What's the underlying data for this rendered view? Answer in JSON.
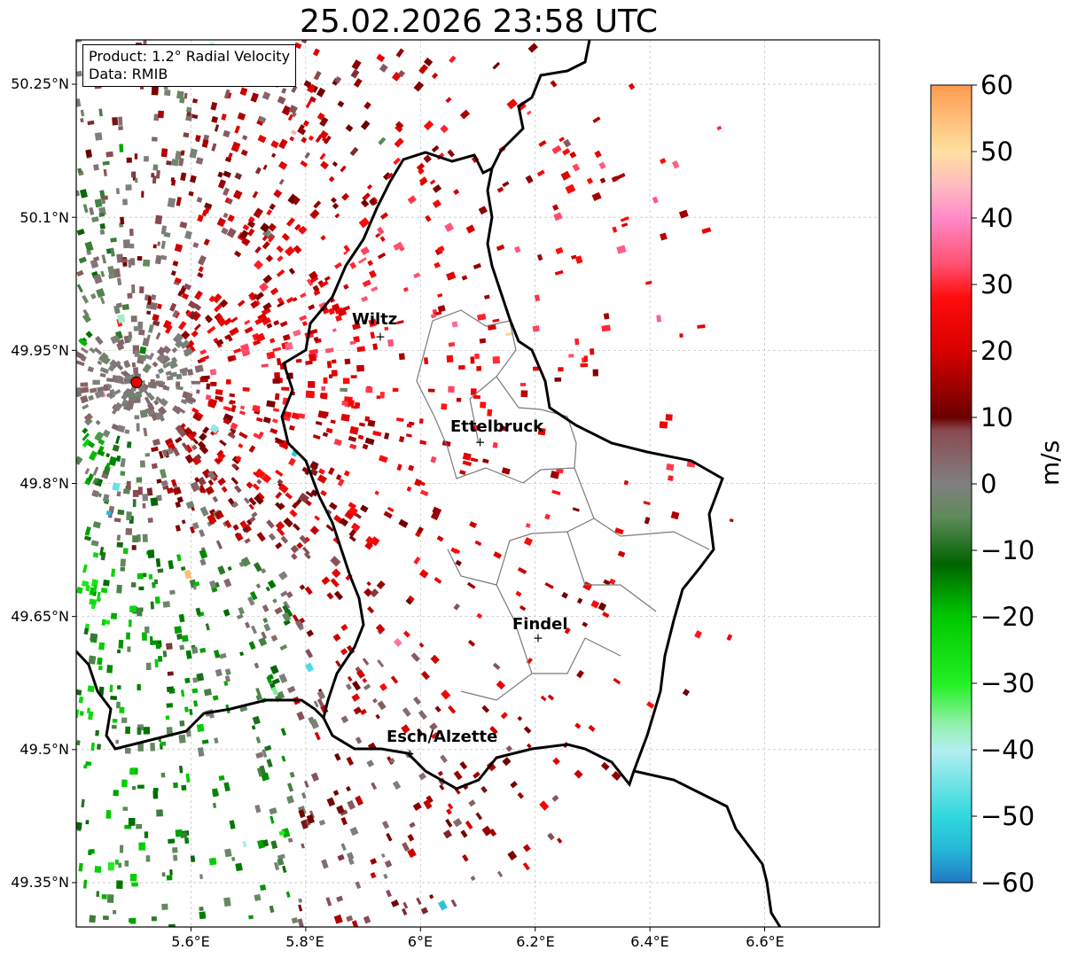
{
  "title": "25.02.2026 23:58 UTC",
  "info": {
    "product": "Product: 1.2° Radial Velocity",
    "source": "Data: RMIB"
  },
  "map": {
    "lon_range": [
      5.4,
      6.8
    ],
    "lat_range": [
      49.3,
      50.3
    ],
    "lat_ticks": [
      "50.25°N",
      "50.1°N",
      "49.95°N",
      "49.8°N",
      "49.65°N",
      "49.5°N",
      "49.35°N"
    ],
    "lon_ticks": [
      "5.6°E",
      "5.8°E",
      "6°E",
      "6.2°E",
      "6.4°E",
      "6.6°E"
    ],
    "radar_site": {
      "lon": 5.505,
      "lat": 49.914
    },
    "cities": [
      {
        "name": "Wiltz",
        "lon": 5.93,
        "lat": 49.966
      },
      {
        "name": "Ettelbruck",
        "lon": 6.104,
        "lat": 49.847
      },
      {
        "name": "Findel",
        "lon": 6.205,
        "lat": 49.626
      },
      {
        "name": "Esch/Alzette",
        "lon": 5.981,
        "lat": 49.496
      }
    ]
  },
  "colorbar": {
    "label": "m/s",
    "min": -60,
    "max": 60,
    "ticks": [
      "60",
      "50",
      "40",
      "30",
      "20",
      "10",
      "0",
      "−10",
      "−20",
      "−30",
      "−40",
      "−50",
      "−60"
    ],
    "stops": [
      {
        "v": -60,
        "c": "#1f78c4"
      },
      {
        "v": -55,
        "c": "#26b8d8"
      },
      {
        "v": -50,
        "c": "#30d8dc"
      },
      {
        "v": -40,
        "c": "#b4eef0"
      },
      {
        "v": -36,
        "c": "#8ff0a8"
      },
      {
        "v": -30,
        "c": "#22f022"
      },
      {
        "v": -20,
        "c": "#00c800"
      },
      {
        "v": -12,
        "c": "#006400"
      },
      {
        "v": -5,
        "c": "#5e8a5a"
      },
      {
        "v": 0,
        "c": "#808080"
      },
      {
        "v": 8,
        "c": "#8a4a52"
      },
      {
        "v": 10,
        "c": "#6a0000"
      },
      {
        "v": 20,
        "c": "#d80000"
      },
      {
        "v": 28,
        "c": "#ff0c0c"
      },
      {
        "v": 33,
        "c": "#ff5070"
      },
      {
        "v": 40,
        "c": "#ff8ac8"
      },
      {
        "v": 45,
        "c": "#ffbcc0"
      },
      {
        "v": 50,
        "c": "#ffe0a0"
      },
      {
        "v": 60,
        "c": "#ff9a50"
      }
    ]
  }
}
